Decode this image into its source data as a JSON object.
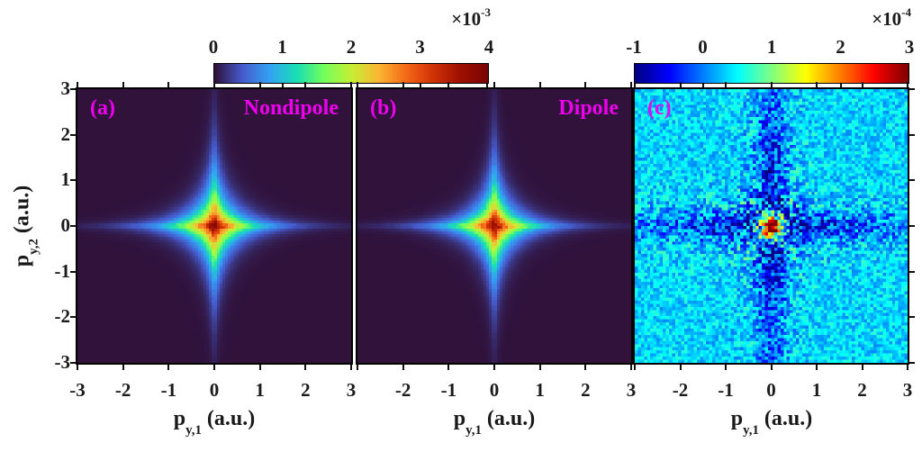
{
  "figure": {
    "label_color": "#EE00EE",
    "axis_text_color": "#1a1a1a",
    "x_axis": {
      "symbol": "p",
      "subscript": "y,1",
      "unit": " (a.u.)"
    },
    "y_axis": {
      "symbol": "p",
      "subscript": "y,2",
      "unit": " (a.u.)",
      "tick_values": [
        3,
        2,
        1,
        0,
        -1,
        -2,
        -3
      ],
      "tick_labels": [
        "3",
        "2",
        "1",
        "0",
        "-1",
        "-2",
        "-3"
      ]
    }
  },
  "colorbars": [
    {
      "id": "shared-ab",
      "colormap": "turbo",
      "range": [
        0,
        4
      ],
      "tick_values": [
        0,
        1,
        2,
        3,
        4
      ],
      "tick_labels": [
        "0",
        "1",
        "2",
        "3",
        "4"
      ],
      "exponent_base": "×10",
      "exponent_power": "-3"
    },
    {
      "id": "panel-c",
      "colormap": "jet",
      "range": [
        -1,
        3
      ],
      "tick_values": [
        -1,
        0,
        1,
        2,
        3
      ],
      "tick_labels": [
        "-1",
        "0",
        "1",
        "2",
        "3"
      ],
      "exponent_base": "×10",
      "exponent_power": "-4"
    }
  ],
  "chart_data": [
    {
      "type": "heatmap",
      "panel": "a",
      "corner_label": "(a)",
      "title": "Nondipole",
      "colormap": "turbo",
      "xlim": [
        -3,
        3
      ],
      "ylim": [
        -3,
        3
      ],
      "clim": [
        0,
        0.004
      ],
      "xlabel": "p_y,1 (a.u.)",
      "ylabel": "p_y,2 (a.u.)",
      "xtick_values": [
        -3,
        -2,
        -1,
        0,
        1,
        2,
        3
      ],
      "xtick_labels": [
        "-3",
        "-2",
        "-1",
        "0",
        "1",
        "2",
        "3"
      ],
      "description": "Cross/star shaped correlated momentum distribution peaked at origin, arms along both axes",
      "model": {
        "kind": "star",
        "bins": 100,
        "peak": 0.004,
        "axis_decay": 0.85,
        "cross_width": 0.22,
        "noise": 0.07,
        "seed": 7
      }
    },
    {
      "type": "heatmap",
      "panel": "b",
      "corner_label": "(b)",
      "title": "Dipole",
      "colormap": "turbo",
      "xlim": [
        -3,
        3
      ],
      "ylim": [
        -3,
        3
      ],
      "clim": [
        0,
        0.004
      ],
      "xlabel": "p_y,1 (a.u.)",
      "ylabel": "p_y,2 (a.u.)",
      "xtick_values": [
        -2,
        -1,
        0,
        1,
        2,
        3
      ],
      "xtick_labels": [
        "-2",
        "-1",
        "0",
        "1",
        "2",
        "3"
      ],
      "description": "Nearly identical cross/star shaped distribution computed in dipole approximation",
      "model": {
        "kind": "star",
        "bins": 100,
        "peak": 0.004,
        "axis_decay": 0.83,
        "cross_width": 0.2,
        "noise": 0.07,
        "seed": 11
      }
    },
    {
      "type": "heatmap",
      "panel": "c",
      "corner_label": "(c)",
      "title": "",
      "colormap": "jet",
      "xlim": [
        -3,
        3
      ],
      "ylim": [
        -3,
        3
      ],
      "clim": [
        -0.0001,
        0.0003
      ],
      "xlabel": "p_y,1 (a.u.)",
      "ylabel": "p_y,2 (a.u.)",
      "xtick_values": [
        -2,
        -1,
        0,
        1,
        2,
        3
      ],
      "xtick_labels": [
        "-2",
        "-1",
        "0",
        "1",
        "2",
        "3"
      ],
      "description": "Noisy difference map: positive (red) blob at origin, negative (blue) arms along axes on cyan near-zero background",
      "model": {
        "kind": "difference",
        "bins": 88,
        "background": 3.5e-05,
        "center_peak": 0.00027,
        "center_sigma2": 0.065,
        "arm_depth": -0.000125,
        "arm_width2": 0.1,
        "arm_decay_y": 2.8,
        "arm_decay_x": 2.2,
        "arm_kill_r2": 0.15,
        "noise": 3.2e-05,
        "seed": 23
      }
    }
  ]
}
